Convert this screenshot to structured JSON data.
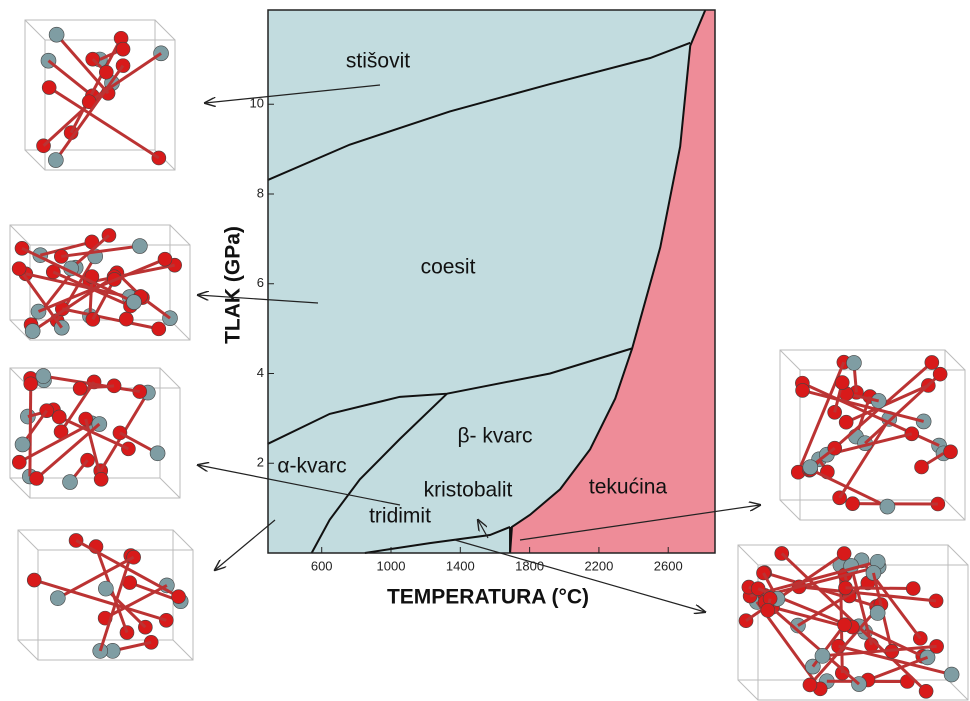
{
  "chart_data": {
    "type": "phase-diagram",
    "xlabel": "TEMPERATURA (°C)",
    "ylabel": "TLAK (GPa)",
    "xlim": [
      290,
      2870
    ],
    "ylim": [
      0,
      12.1
    ],
    "xticks": [
      600,
      1000,
      1400,
      1800,
      2200,
      2600
    ],
    "yticks": [
      2,
      4,
      6,
      8,
      10
    ],
    "background_color": "#c2dcdf",
    "phases": [
      "stišovit",
      "coesit",
      "β- kvarc",
      "α-kvarc",
      "kristobalit",
      "tridimit"
    ],
    "liquid": {
      "name": "tekućina",
      "color": "#ee8c98",
      "x": [
        1687,
        1698,
        1802,
        1976,
        2149,
        2294,
        2392,
        2554,
        2669,
        2727,
        2814
      ],
      "y": [
        0,
        0.58,
        0.85,
        1.42,
        2.31,
        3.44,
        4.56,
        6.81,
        9.06,
        11.3,
        12.1
      ]
    },
    "boundaries": [
      {
        "x": [
          288,
          762,
          1340,
          1918,
          2496,
          2727
        ],
        "y": [
          8.31,
          9.1,
          9.84,
          10.45,
          11.03,
          11.37
        ]
      },
      {
        "x": [
          288,
          646,
          1051,
          1323,
          1918,
          2392
        ],
        "y": [
          2.43,
          3.1,
          3.48,
          3.55,
          4.0,
          4.56
        ]
      },
      {
        "x": [
          1323,
          1051,
          820,
          646,
          542
        ],
        "y": [
          3.55,
          2.54,
          1.64,
          0.74,
          0
        ]
      },
      {
        "x": [
          849,
          1224,
          1571,
          1687
        ],
        "y": [
          0,
          0.22,
          0.4,
          0.58
        ]
      },
      {
        "x": [
          1687,
          1687
        ],
        "y": [
          0.58,
          0
        ]
      }
    ]
  }
}
